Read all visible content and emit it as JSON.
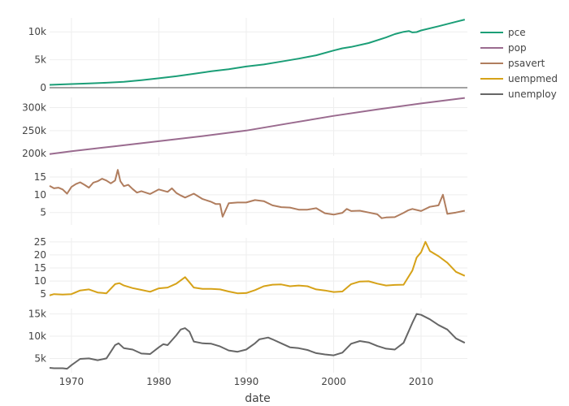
{
  "chart_data": {
    "type": "line",
    "subplots": "stacked",
    "shared_x": true,
    "xlabel": "date",
    "xlim": [
      1967.5,
      2015.3
    ],
    "x_ticks": [
      1970,
      1980,
      1990,
      2000,
      2010
    ],
    "x_tick_labels": [
      "1970",
      "1980",
      "1990",
      "2000",
      "2010"
    ],
    "grid": true,
    "legend_position": "top-right",
    "series": [
      {
        "name": "pce",
        "color": "#1b9e77",
        "ylim": [
          0,
          12500
        ],
        "y_ticks": [
          0,
          5000,
          10000
        ],
        "y_tick_labels": [
          "0",
          "5k",
          "10k"
        ],
        "zeroline": true,
        "x": [
          1967.5,
          1970,
          1972,
          1974,
          1976,
          1978,
          1980,
          1982,
          1984,
          1986,
          1988,
          1990,
          1992,
          1994,
          1996,
          1998,
          2000,
          2001,
          2002,
          2004,
          2006,
          2007,
          2008,
          2008.6,
          2009,
          2009.5,
          2010,
          2012,
          2014,
          2015
        ],
        "values": [
          510,
          650,
          760,
          880,
          1050,
          1330,
          1680,
          2050,
          2490,
          2940,
          3300,
          3800,
          4150,
          4680,
          5200,
          5800,
          6650,
          7050,
          7300,
          8000,
          9000,
          9600,
          10000,
          10150,
          9900,
          9950,
          10250,
          11000,
          11800,
          12200
        ]
      },
      {
        "name": "pop",
        "color": "#9a6b8f",
        "ylim": [
          195000,
          322000
        ],
        "y_ticks": [
          200000,
          250000,
          300000
        ],
        "y_tick_labels": [
          "200k",
          "250k",
          "300k"
        ],
        "x": [
          1967.5,
          1970,
          1975,
          1980,
          1985,
          1990,
          1995,
          2000,
          2005,
          2010,
          2015
        ],
        "values": [
          199000,
          205000,
          216000,
          227000,
          238000,
          250000,
          266000,
          282000,
          296000,
          309000,
          321000
        ]
      },
      {
        "name": "psavert",
        "color": "#b07d5e",
        "ylim": [
          1.5,
          17.5
        ],
        "y_ticks": [
          5,
          10,
          15
        ],
        "y_tick_labels": [
          "5",
          "10",
          "15"
        ],
        "x": [
          1967.5,
          1968,
          1968.5,
          1969,
          1969.5,
          1970,
          1970.5,
          1971,
          1971.5,
          1972,
          1972.5,
          1973,
          1973.5,
          1974,
          1974.5,
          1975,
          1975.3,
          1975.6,
          1976,
          1976.5,
          1977,
          1977.5,
          1978,
          1979,
          1980,
          1981,
          1981.5,
          1982,
          1982.5,
          1983,
          1984,
          1985,
          1986,
          1986.5,
          1987,
          1987.3,
          1988,
          1989,
          1990,
          1991,
          1992,
          1993,
          1994,
          1995,
          1996,
          1997,
          1998,
          1999,
          2000,
          2001,
          2001.5,
          2002,
          2003,
          2004,
          2005,
          2005.5,
          2006,
          2007,
          2008,
          2008.5,
          2009,
          2010,
          2011,
          2012,
          2012.5,
          2013,
          2014,
          2015
        ],
        "values": [
          12.5,
          11.8,
          12.0,
          11.5,
          10.3,
          12.2,
          13.0,
          13.5,
          12.8,
          12.0,
          13.4,
          13.8,
          14.5,
          14.0,
          13.2,
          14.0,
          17.0,
          13.8,
          12.4,
          12.8,
          11.6,
          10.6,
          11.0,
          10.2,
          11.5,
          10.8,
          11.8,
          10.5,
          9.8,
          9.2,
          10.3,
          8.8,
          8.0,
          7.4,
          7.4,
          3.8,
          7.6,
          7.8,
          7.8,
          8.5,
          8.2,
          7.0,
          6.5,
          6.4,
          5.8,
          5.8,
          6.2,
          4.8,
          4.4,
          4.9,
          6.0,
          5.4,
          5.5,
          5.0,
          4.5,
          3.4,
          3.6,
          3.7,
          4.9,
          5.6,
          6.0,
          5.4,
          6.6,
          7.0,
          10.0,
          4.6,
          5.0,
          5.5
        ]
      },
      {
        "name": "uempmed",
        "color": "#d6a218",
        "ylim": [
          3.5,
          26.5
        ],
        "y_ticks": [
          5,
          10,
          15,
          20,
          25
        ],
        "y_tick_labels": [
          "5",
          "10",
          "15",
          "20",
          "25"
        ],
        "x": [
          1967.5,
          1968,
          1969,
          1970,
          1971,
          1972,
          1973,
          1974,
          1975,
          1975.5,
          1976,
          1977,
          1978,
          1979,
          1980,
          1981,
          1982,
          1983,
          1983.5,
          1984,
          1985,
          1986,
          1987,
          1988,
          1989,
          1990,
          1991,
          1992,
          1993,
          1994,
          1995,
          1996,
          1997,
          1998,
          1999,
          2000,
          2001,
          2002,
          2003,
          2004,
          2005,
          2006,
          2007,
          2008,
          2009,
          2009.5,
          2010,
          2010.5,
          2011,
          2012,
          2013,
          2014,
          2015
        ],
        "values": [
          4.5,
          5.0,
          4.8,
          5.0,
          6.4,
          6.8,
          5.6,
          5.3,
          8.8,
          9.2,
          8.3,
          7.3,
          6.6,
          5.9,
          7.2,
          7.5,
          9.0,
          11.5,
          9.5,
          7.5,
          7.0,
          7.0,
          6.8,
          6.0,
          5.3,
          5.4,
          6.5,
          8.0,
          8.6,
          8.7,
          8.0,
          8.3,
          8.0,
          6.8,
          6.4,
          5.8,
          6.0,
          8.8,
          9.8,
          9.9,
          9.0,
          8.3,
          8.5,
          8.6,
          14.0,
          19.0,
          21.0,
          25.0,
          21.5,
          19.5,
          17.0,
          13.5,
          12.0
        ]
      },
      {
        "name": "unemploy",
        "color": "#666666",
        "ylim": [
          1800,
          16200
        ],
        "y_ticks": [
          5000,
          10000,
          15000
        ],
        "y_tick_labels": [
          "5k",
          "10k",
          "15k"
        ],
        "x": [
          1967.5,
          1968,
          1969,
          1969.5,
          1970,
          1971,
          1972,
          1973,
          1974,
          1974.5,
          1975,
          1975.4,
          1976,
          1977,
          1978,
          1979,
          1980,
          1980.5,
          1981,
          1982,
          1982.5,
          1983,
          1983.5,
          1984,
          1985,
          1986,
          1987,
          1988,
          1989,
          1990,
          1991,
          1991.5,
          1992,
          1992.5,
          1993,
          1994,
          1995,
          1996,
          1997,
          1998,
          1999,
          2000,
          2001,
          2002,
          2003,
          2004,
          2005,
          2006,
          2007,
          2008,
          2009,
          2009.5,
          2010,
          2011,
          2012,
          2013,
          2014,
          2015
        ],
        "values": [
          2900,
          2800,
          2800,
          2700,
          3500,
          4900,
          5000,
          4600,
          5000,
          6500,
          8000,
          8400,
          7300,
          7000,
          6100,
          6000,
          7500,
          8200,
          8000,
          10200,
          11500,
          11800,
          11000,
          8800,
          8400,
          8300,
          7700,
          6800,
          6500,
          7000,
          8400,
          9300,
          9500,
          9700,
          9300,
          8400,
          7500,
          7300,
          6900,
          6200,
          5900,
          5700,
          6300,
          8300,
          8900,
          8600,
          7800,
          7200,
          7000,
          8500,
          13000,
          15000,
          14800,
          13800,
          12500,
          11500,
          9500,
          8500
        ]
      }
    ]
  }
}
